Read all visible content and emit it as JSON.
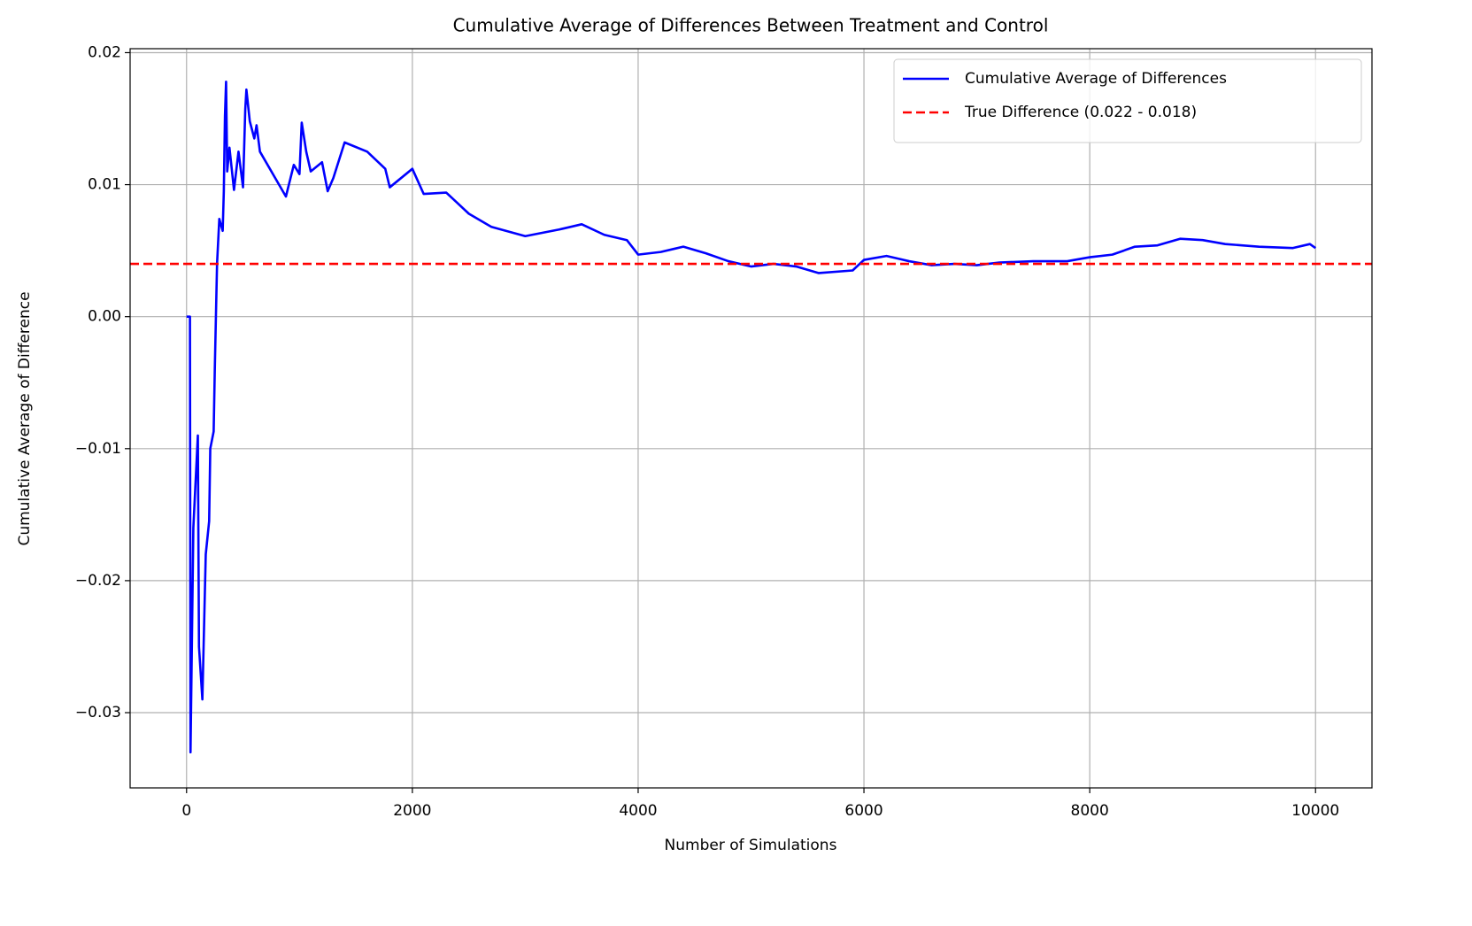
{
  "chart_data": {
    "type": "line",
    "title": "Cumulative Average of Differences Between Treatment and Control",
    "x_label": "Number of Simulations",
    "y_label": "Cumulative Average of Difference",
    "series": [
      {
        "name": "Cumulative Average of Differences",
        "color": "#0000ff",
        "x": [
          0,
          30,
          35,
          60,
          100,
          110,
          140,
          170,
          200,
          210,
          240,
          250,
          270,
          290,
          320,
          330,
          340,
          350,
          360,
          380,
          420,
          460,
          500,
          520,
          530,
          560,
          600,
          620,
          650,
          880,
          950,
          1000,
          1020,
          1060,
          1100,
          1200,
          1250,
          1300,
          1400,
          1600,
          1760,
          1800,
          2000,
          2100,
          2300,
          2500,
          2700,
          3000,
          3300,
          3500,
          3700,
          3900,
          4000,
          4200,
          4400,
          4600,
          4800,
          5000,
          5200,
          5400,
          5600,
          5900,
          6000,
          6200,
          6400,
          6600,
          6800,
          7000,
          7200,
          7500,
          7800,
          8000,
          8200,
          8400,
          8600,
          8800,
          9000,
          9200,
          9500,
          9800,
          9950,
          10000
        ],
        "values": [
          0,
          0,
          -0.033,
          -0.016,
          -0.009,
          -0.025,
          -0.029,
          -0.018,
          -0.0155,
          -0.01,
          -0.0087,
          -0.004,
          0.004,
          0.0074,
          0.0065,
          0.0095,
          0.0152,
          0.0178,
          0.011,
          0.0128,
          0.0096,
          0.0125,
          0.0098,
          0.0157,
          0.0172,
          0.0148,
          0.0135,
          0.0145,
          0.0125,
          0.0091,
          0.0115,
          0.0108,
          0.0147,
          0.0125,
          0.011,
          0.0117,
          0.0095,
          0.0105,
          0.0132,
          0.0125,
          0.0112,
          0.0098,
          0.0112,
          0.0093,
          0.0094,
          0.0078,
          0.0068,
          0.0061,
          0.0066,
          0.007,
          0.0062,
          0.0058,
          0.0047,
          0.0049,
          0.0053,
          0.0048,
          0.0042,
          0.0038,
          0.004,
          0.0038,
          0.0033,
          0.0035,
          0.0043,
          0.0046,
          0.0042,
          0.0039,
          0.004,
          0.0039,
          0.0041,
          0.0042,
          0.0042,
          0.0045,
          0.0047,
          0.0053,
          0.0054,
          0.0059,
          0.0058,
          0.0055,
          0.0053,
          0.0052,
          0.0055,
          0.0052
        ]
      }
    ],
    "reference_line": {
      "name": "True Difference (0.022 - 0.018)",
      "color": "#ff0000",
      "value": 0.004,
      "style": "dashed"
    },
    "xlim": [
      -500,
      10500
    ],
    "xticks": [
      0,
      2000,
      4000,
      6000,
      8000,
      10000
    ],
    "ylim": [
      -0.0357,
      0.0203
    ],
    "yticks": [
      {
        "value": -0.03,
        "label": "−0.03"
      },
      {
        "value": -0.02,
        "label": "−0.02"
      },
      {
        "value": -0.01,
        "label": "−0.01"
      },
      {
        "value": 0,
        "label": "0.00"
      },
      0.01,
      0.02
    ],
    "grid": true,
    "legend": "upper right"
  }
}
